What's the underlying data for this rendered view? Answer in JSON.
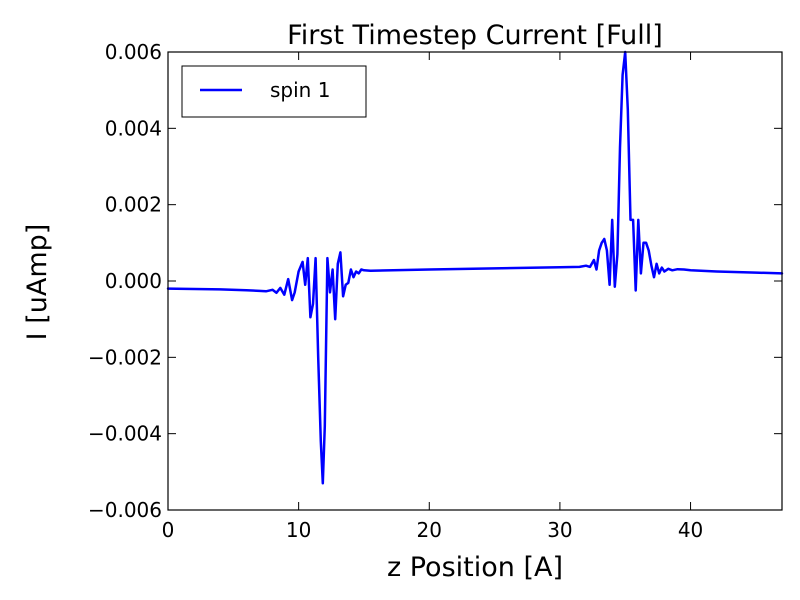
{
  "chart_data": {
    "type": "line",
    "title": "First Timestep Current [Full]",
    "xlabel": "z Position [A]",
    "ylabel": "I [uAmp]",
    "xlim": [
      0,
      47
    ],
    "ylim": [
      -0.006,
      0.006
    ],
    "x_ticks": [
      0,
      10,
      20,
      30,
      40
    ],
    "x_tick_labels": [
      "0",
      "10",
      "20",
      "30",
      "40"
    ],
    "y_ticks": [
      0.006,
      0.004,
      0.002,
      0.0,
      -0.002,
      -0.004,
      -0.006
    ],
    "y_tick_labels": [
      "0.006",
      "0.004",
      "0.002",
      "0.000",
      "−0.002",
      "−0.004",
      "−0.006"
    ],
    "grid": false,
    "legend_position": "top-left",
    "series": [
      {
        "name": "spin 1",
        "color": "#0000ff",
        "x": [
          0,
          2,
          4,
          6,
          7.0,
          7.5,
          8.0,
          8.3,
          8.6,
          8.9,
          9.2,
          9.5,
          9.7,
          10.0,
          10.3,
          10.5,
          10.7,
          10.9,
          11.1,
          11.3,
          11.5,
          11.7,
          11.85,
          12.0,
          12.2,
          12.4,
          12.6,
          12.8,
          13.0,
          13.2,
          13.4,
          13.6,
          13.8,
          14.0,
          14.2,
          14.4,
          14.6,
          14.8,
          15.0,
          15.5,
          20,
          25,
          30,
          31.5,
          32.0,
          32.3,
          32.6,
          32.8,
          33.0,
          33.2,
          33.4,
          33.6,
          33.8,
          34.0,
          34.2,
          34.4,
          34.6,
          34.8,
          35.0,
          35.2,
          35.4,
          35.6,
          35.8,
          36.0,
          36.2,
          36.4,
          36.6,
          36.8,
          37.0,
          37.2,
          37.4,
          37.6,
          37.8,
          38.0,
          38.3,
          38.6,
          39.0,
          39.5,
          40.0,
          42,
          45,
          47
        ],
        "y": [
          -0.0002,
          -0.00021,
          -0.00022,
          -0.00024,
          -0.00026,
          -0.00027,
          -0.00023,
          -0.00031,
          -0.00018,
          -0.00036,
          5e-05,
          -0.0005,
          -0.0003,
          0.00025,
          0.0005,
          -0.0001,
          0.0006,
          -0.00095,
          -0.0006,
          0.0006,
          -0.002,
          -0.0042,
          -0.0053,
          -0.0038,
          0.0006,
          -0.0003,
          0.0003,
          -0.001,
          0.00045,
          0.00075,
          -0.0004,
          -0.0001,
          -5e-05,
          0.0003,
          0.0001,
          0.00025,
          0.0002,
          0.0003,
          0.00028,
          0.00027,
          0.0003,
          0.00033,
          0.00036,
          0.00037,
          0.0004,
          0.00037,
          0.00055,
          0.0003,
          0.0008,
          0.001,
          0.0011,
          0.0008,
          -0.0001,
          0.0016,
          -0.00015,
          0.0007,
          0.0035,
          0.0054,
          0.006,
          0.0045,
          0.0016,
          0.0016,
          -0.00025,
          0.0016,
          0.0002,
          0.001,
          0.001,
          0.0008,
          0.0004,
          0.0001,
          0.00045,
          0.0002,
          0.00035,
          0.00025,
          0.00032,
          0.00028,
          0.00031,
          0.0003,
          0.00028,
          0.00025,
          0.00022,
          0.0002
        ]
      }
    ]
  }
}
